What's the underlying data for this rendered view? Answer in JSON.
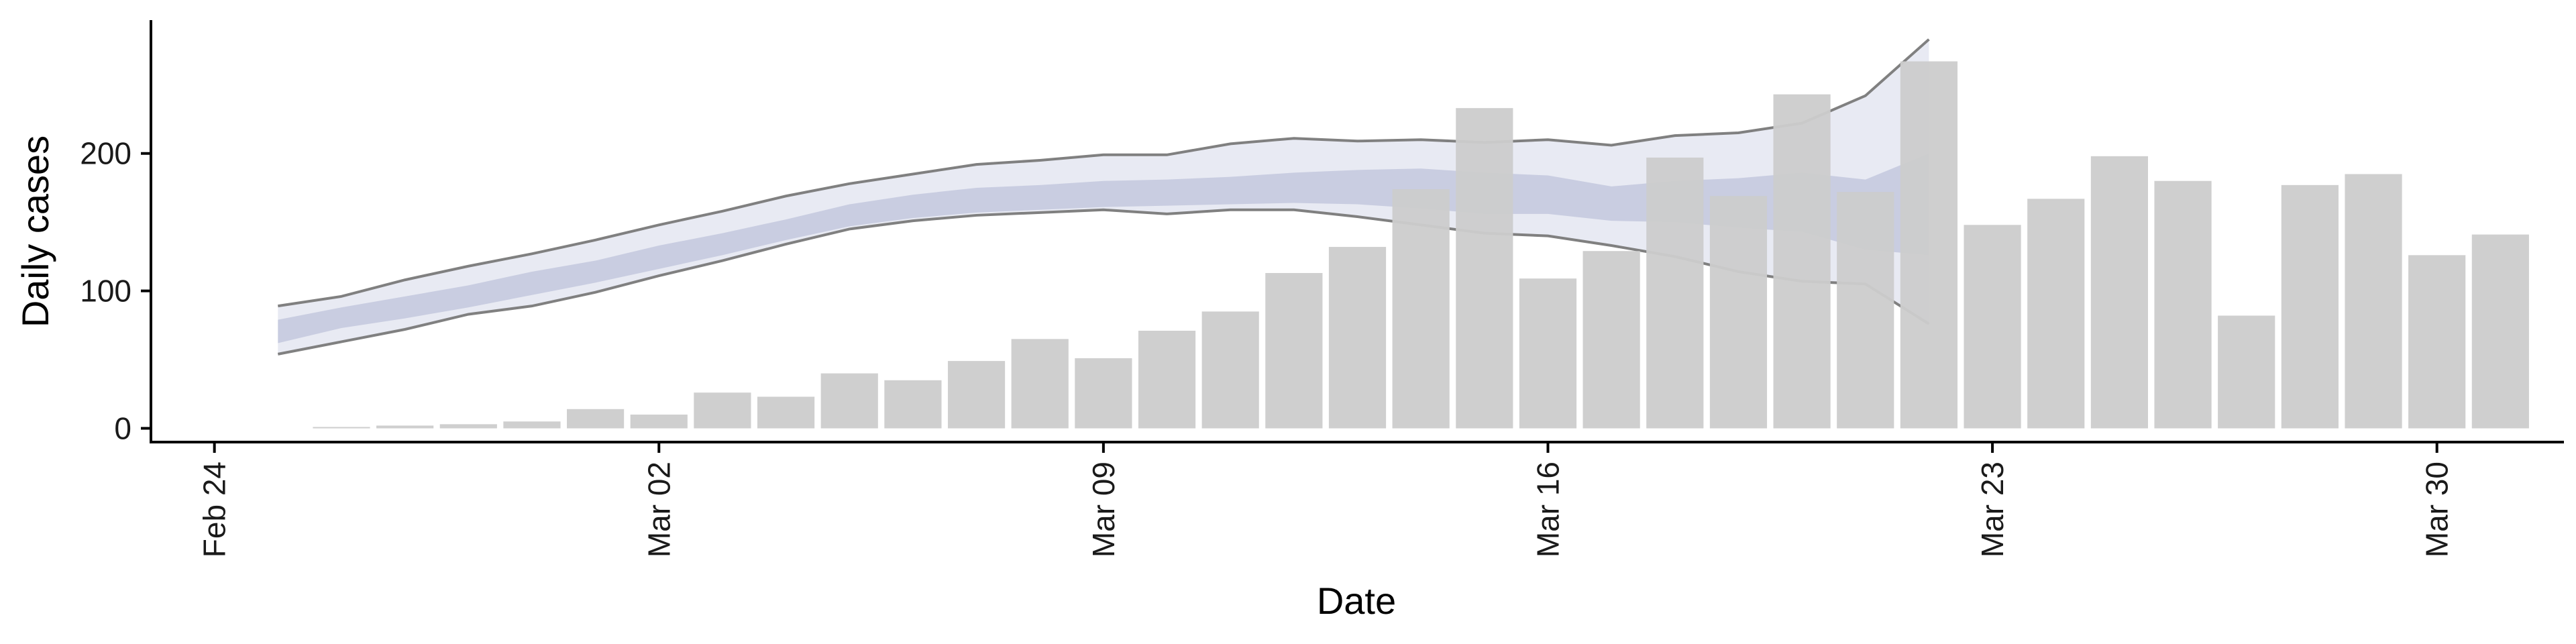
{
  "chart_data": {
    "type": "bar",
    "title": "",
    "xlabel": "Date",
    "ylabel": "Daily cases",
    "x_axis": {
      "start": "2020-02-23",
      "end": "2020-04-01",
      "tick_dates": [
        "2020-02-24",
        "2020-03-02",
        "2020-03-09",
        "2020-03-16",
        "2020-03-23",
        "2020-03-30"
      ],
      "tick_labels": [
        "Feb 24",
        "Mar 02",
        "Mar 09",
        "Mar 16",
        "Mar 23",
        "Mar 30"
      ]
    },
    "ylim": [
      -10,
      297
    ],
    "y_ticks": [
      0,
      100,
      200
    ],
    "grid": false,
    "legend": "none",
    "series": [
      {
        "type": "bar",
        "color": "#cccccc",
        "dates": [
          "2020-02-26",
          "2020-02-27",
          "2020-02-28",
          "2020-02-29",
          "2020-03-01",
          "2020-03-02",
          "2020-03-03",
          "2020-03-04",
          "2020-03-05",
          "2020-03-06",
          "2020-03-07",
          "2020-03-08",
          "2020-03-09",
          "2020-03-10",
          "2020-03-11",
          "2020-03-12",
          "2020-03-13",
          "2020-03-14",
          "2020-03-15",
          "2020-03-16",
          "2020-03-17",
          "2020-03-18",
          "2020-03-19",
          "2020-03-20",
          "2020-03-21",
          "2020-03-22",
          "2020-03-23",
          "2020-03-24",
          "2020-03-25",
          "2020-03-26",
          "2020-03-27",
          "2020-03-28",
          "2020-03-29",
          "2020-03-30",
          "2020-03-31"
        ],
        "values": [
          1,
          2,
          3,
          5,
          14,
          10,
          26,
          23,
          40,
          35,
          49,
          65,
          51,
          71,
          85,
          113,
          132,
          174,
          233,
          109,
          129,
          197,
          169,
          243,
          172,
          267,
          148,
          167,
          198,
          180,
          82,
          177,
          185,
          126,
          141
        ]
      },
      {
        "type": "band",
        "name_role": "outer interval",
        "fill_color": "#e6e8f2",
        "line_color": "#808080",
        "dates": [
          "2020-02-25",
          "2020-02-26",
          "2020-02-27",
          "2020-02-28",
          "2020-02-29",
          "2020-03-01",
          "2020-03-02",
          "2020-03-03",
          "2020-03-04",
          "2020-03-05",
          "2020-03-06",
          "2020-03-07",
          "2020-03-08",
          "2020-03-09",
          "2020-03-10",
          "2020-03-11",
          "2020-03-12",
          "2020-03-13",
          "2020-03-14",
          "2020-03-15",
          "2020-03-16",
          "2020-03-17",
          "2020-03-18",
          "2020-03-19",
          "2020-03-20",
          "2020-03-21",
          "2020-03-22"
        ],
        "upper": [
          89,
          96,
          108,
          118,
          127,
          137,
          148,
          158,
          169,
          178,
          185,
          192,
          195,
          199,
          199,
          207,
          211,
          209,
          210,
          208,
          210,
          206,
          213,
          215,
          222,
          242,
          283
        ],
        "lower": [
          54,
          63,
          72,
          83,
          89,
          99,
          111,
          122,
          134,
          145,
          151,
          155,
          157,
          159,
          156,
          159,
          159,
          154,
          148,
          142,
          140,
          133,
          125,
          114,
          107,
          105,
          76
        ]
      },
      {
        "type": "band",
        "name_role": "inner interval",
        "fill_color": "#c5cadf",
        "dates": [
          "2020-02-25",
          "2020-02-26",
          "2020-02-27",
          "2020-02-28",
          "2020-02-29",
          "2020-03-01",
          "2020-03-02",
          "2020-03-03",
          "2020-03-04",
          "2020-03-05",
          "2020-03-06",
          "2020-03-07",
          "2020-03-08",
          "2020-03-09",
          "2020-03-10",
          "2020-03-11",
          "2020-03-12",
          "2020-03-13",
          "2020-03-14",
          "2020-03-15",
          "2020-03-16",
          "2020-03-17",
          "2020-03-18",
          "2020-03-19",
          "2020-03-20",
          "2020-03-21",
          "2020-03-22"
        ],
        "upper": [
          79,
          88,
          96,
          104,
          114,
          122,
          133,
          142,
          152,
          163,
          170,
          175,
          177,
          180,
          181,
          183,
          186,
          188,
          189,
          186,
          184,
          176,
          180,
          182,
          186,
          181,
          200
        ],
        "lower": [
          62,
          73,
          80,
          88,
          97,
          106,
          116,
          126,
          137,
          147,
          153,
          157,
          159,
          161,
          162,
          163,
          164,
          163,
          160,
          156,
          156,
          151,
          150,
          146,
          143,
          130,
          126
        ]
      }
    ]
  }
}
